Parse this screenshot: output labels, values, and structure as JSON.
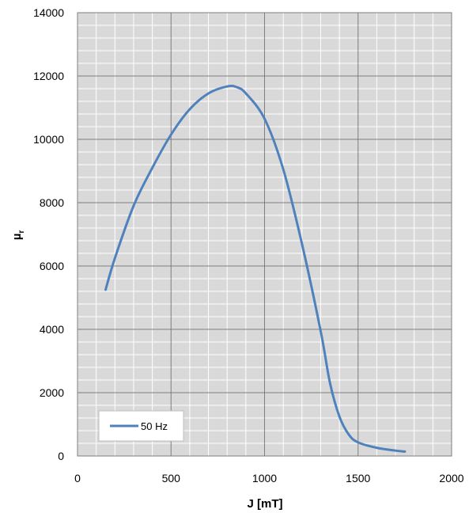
{
  "chart_data": {
    "type": "line",
    "title": "",
    "xlabel": "J [mT]",
    "ylabel_main": "µ",
    "ylabel_sub": "r",
    "xlim": [
      0,
      2000
    ],
    "ylim": [
      0,
      14000
    ],
    "x_ticks": [
      0,
      500,
      1000,
      1500,
      2000
    ],
    "y_ticks": [
      0,
      2000,
      4000,
      6000,
      8000,
      10000,
      12000,
      14000
    ],
    "x_minor_step": 100,
    "y_minor_step": 400,
    "grid": true,
    "plot_background": "#d9d9d9",
    "minor_grid_color": "#ffffff",
    "major_grid_color": "#7f7f7f",
    "legend_position": "bottom-left",
    "series": [
      {
        "name": "50 Hz",
        "color": "#4f81bd",
        "points": [
          [
            150,
            5250
          ],
          [
            200,
            6250
          ],
          [
            300,
            7900
          ],
          [
            400,
            9100
          ],
          [
            500,
            10150
          ],
          [
            600,
            10950
          ],
          [
            700,
            11450
          ],
          [
            800,
            11670
          ],
          [
            850,
            11650
          ],
          [
            900,
            11450
          ],
          [
            1000,
            10650
          ],
          [
            1100,
            9050
          ],
          [
            1200,
            6700
          ],
          [
            1300,
            3950
          ],
          [
            1350,
            2300
          ],
          [
            1400,
            1250
          ],
          [
            1450,
            680
          ],
          [
            1500,
            430
          ],
          [
            1600,
            260
          ],
          [
            1700,
            170
          ],
          [
            1750,
            140
          ]
        ]
      }
    ]
  }
}
